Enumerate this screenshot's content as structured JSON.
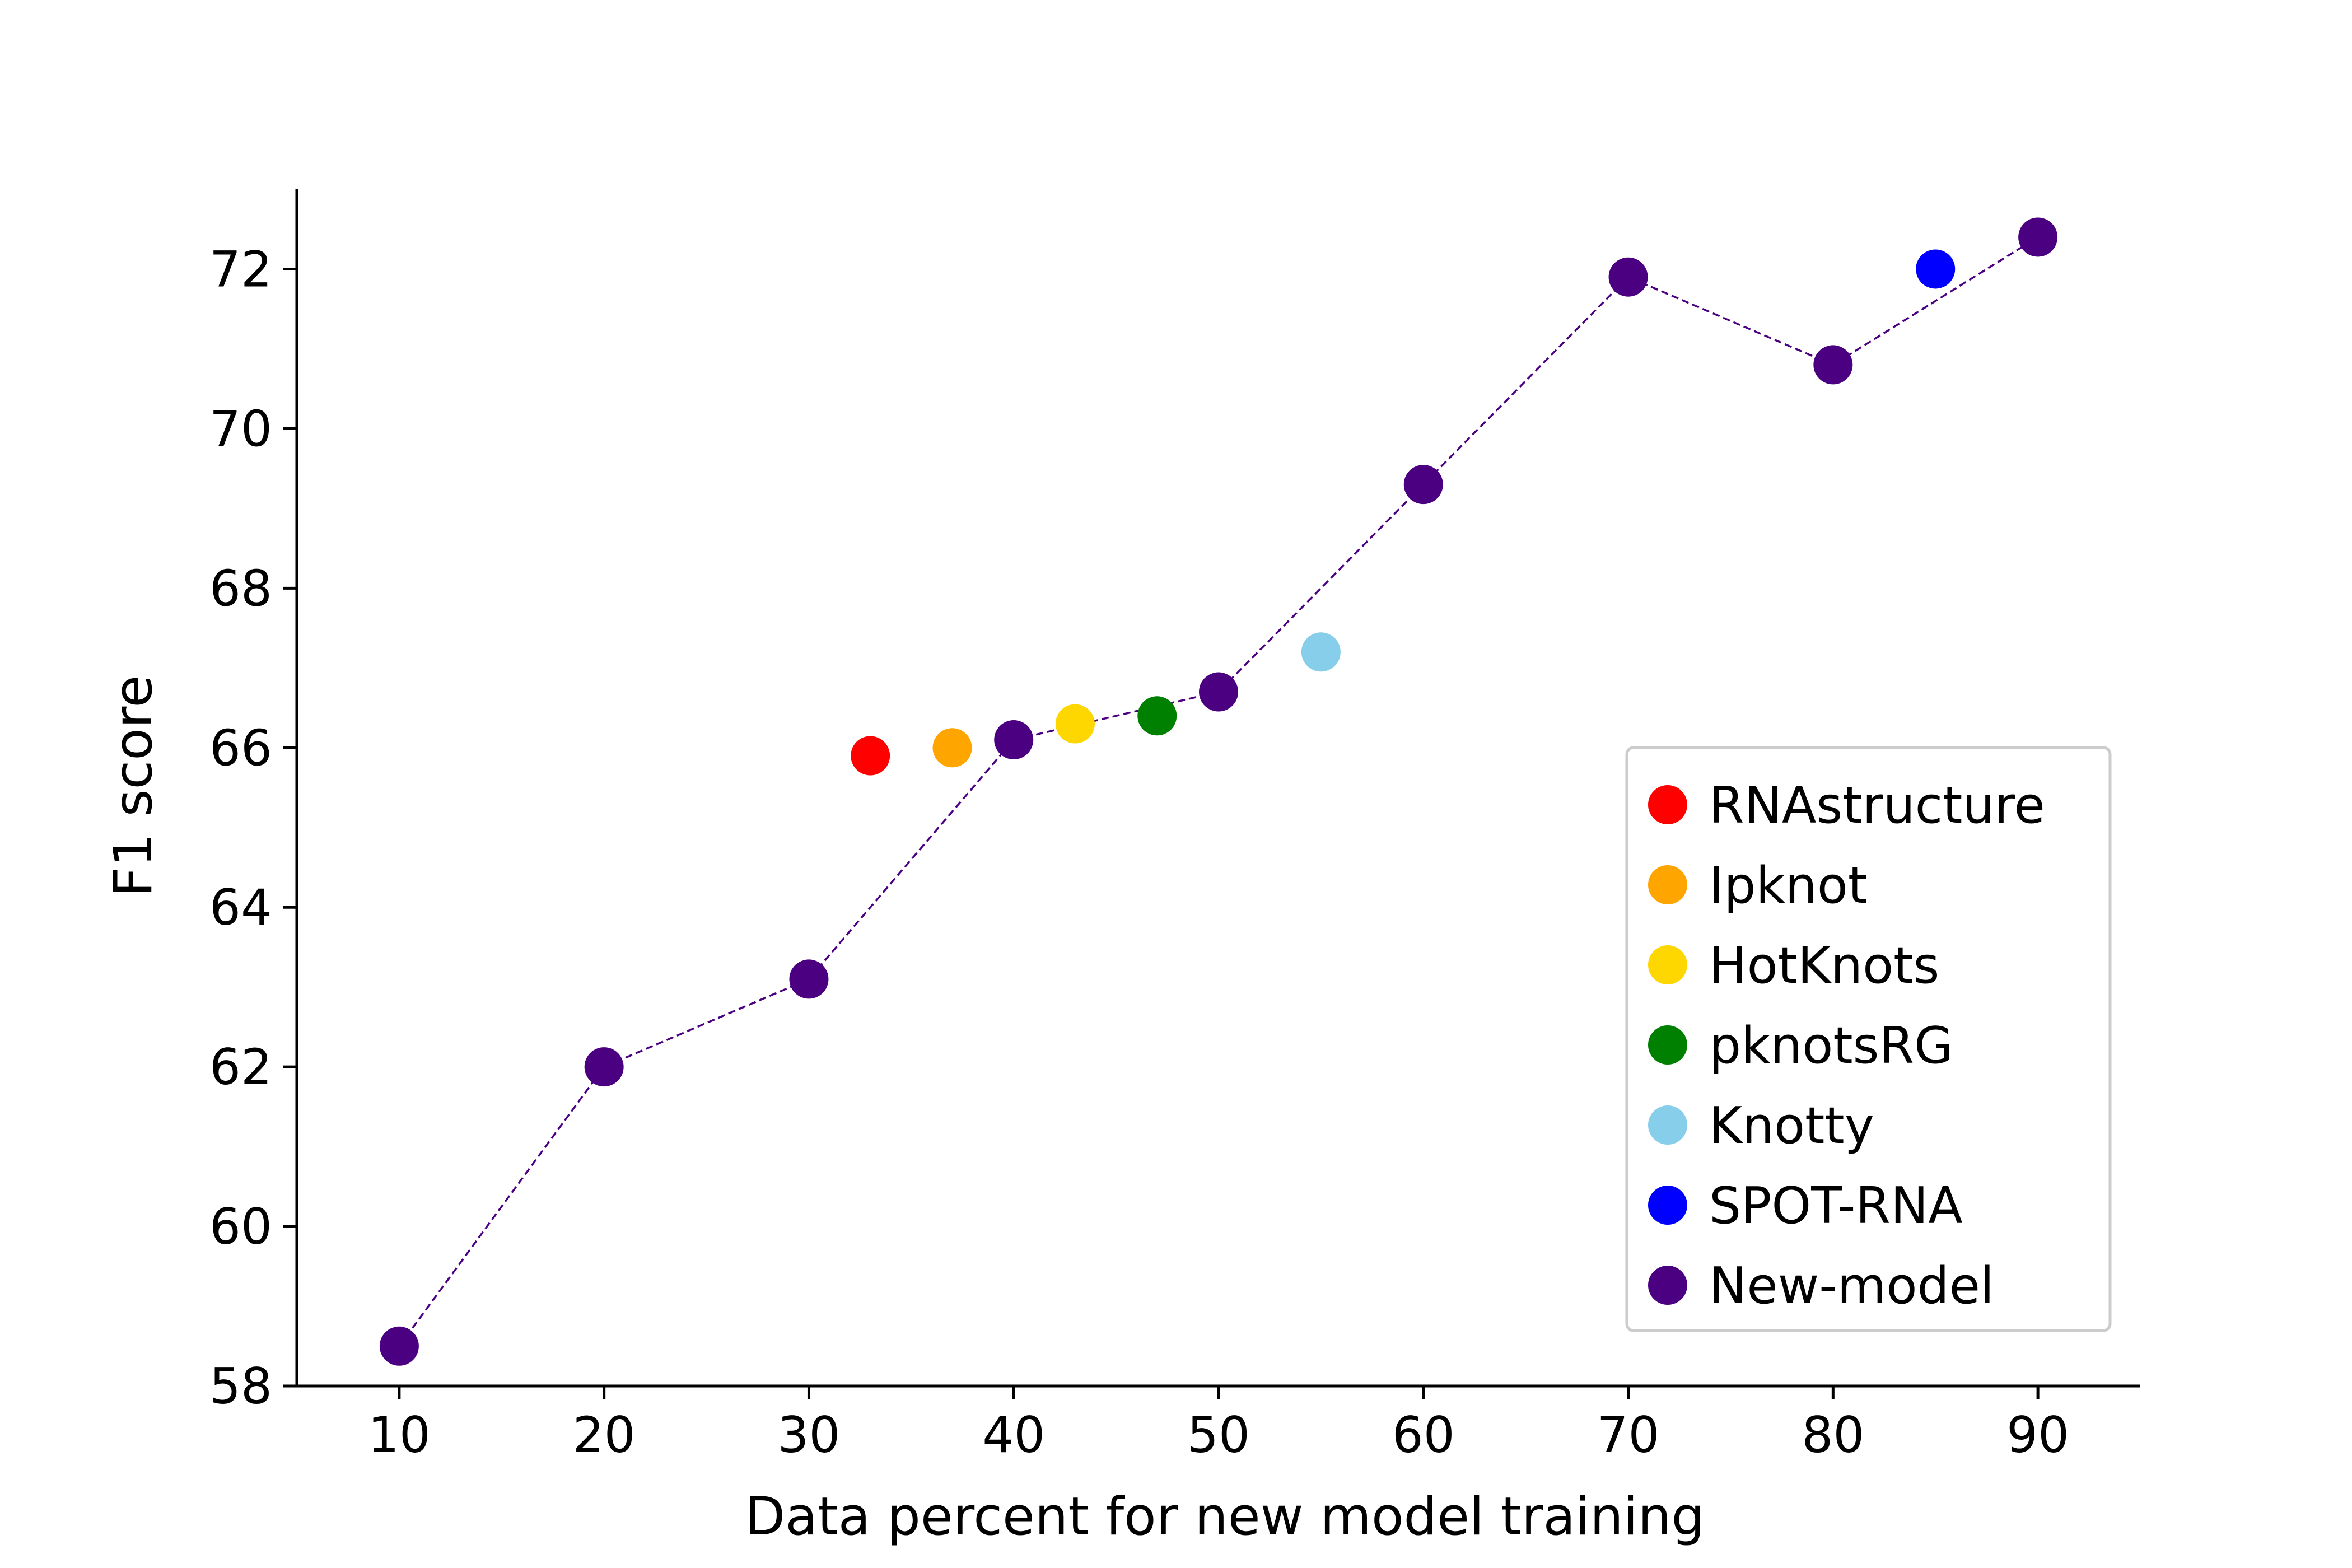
{
  "chart_data": {
    "type": "scatter",
    "title": "",
    "xlabel": "Data percent for new model training",
    "ylabel": "F1 score",
    "xlim": [
      5,
      95
    ],
    "ylim": [
      58,
      73
    ],
    "xticks": [
      10,
      20,
      30,
      40,
      50,
      60,
      70,
      80,
      90
    ],
    "yticks": [
      58,
      60,
      62,
      64,
      66,
      68,
      70,
      72
    ],
    "grid": false,
    "legend_position": "lower-right",
    "series": [
      {
        "name": "RNAstructure",
        "color": "#ff0000",
        "x": [
          33
        ],
        "y": [
          65.9
        ],
        "line": false
      },
      {
        "name": "Ipknot",
        "color": "#ffa500",
        "x": [
          37
        ],
        "y": [
          66.0
        ],
        "line": false
      },
      {
        "name": "HotKnots",
        "color": "#ffd700",
        "x": [
          43
        ],
        "y": [
          66.3
        ],
        "line": false
      },
      {
        "name": "pknotsRG",
        "color": "#008000",
        "x": [
          47
        ],
        "y": [
          66.4
        ],
        "line": false
      },
      {
        "name": "Knotty",
        "color": "#87ceeb",
        "x": [
          55
        ],
        "y": [
          67.2
        ],
        "line": false
      },
      {
        "name": "SPOT-RNA",
        "color": "#0000ff",
        "x": [
          85
        ],
        "y": [
          72.0
        ],
        "line": false
      },
      {
        "name": "New-model",
        "color": "#4b0082",
        "x": [
          10,
          20,
          30,
          40,
          50,
          60,
          70,
          80,
          90
        ],
        "y": [
          58.5,
          62.0,
          63.1,
          66.1,
          66.7,
          69.3,
          71.9,
          70.8,
          72.4
        ],
        "line": true,
        "line_style": "dashed"
      }
    ]
  }
}
